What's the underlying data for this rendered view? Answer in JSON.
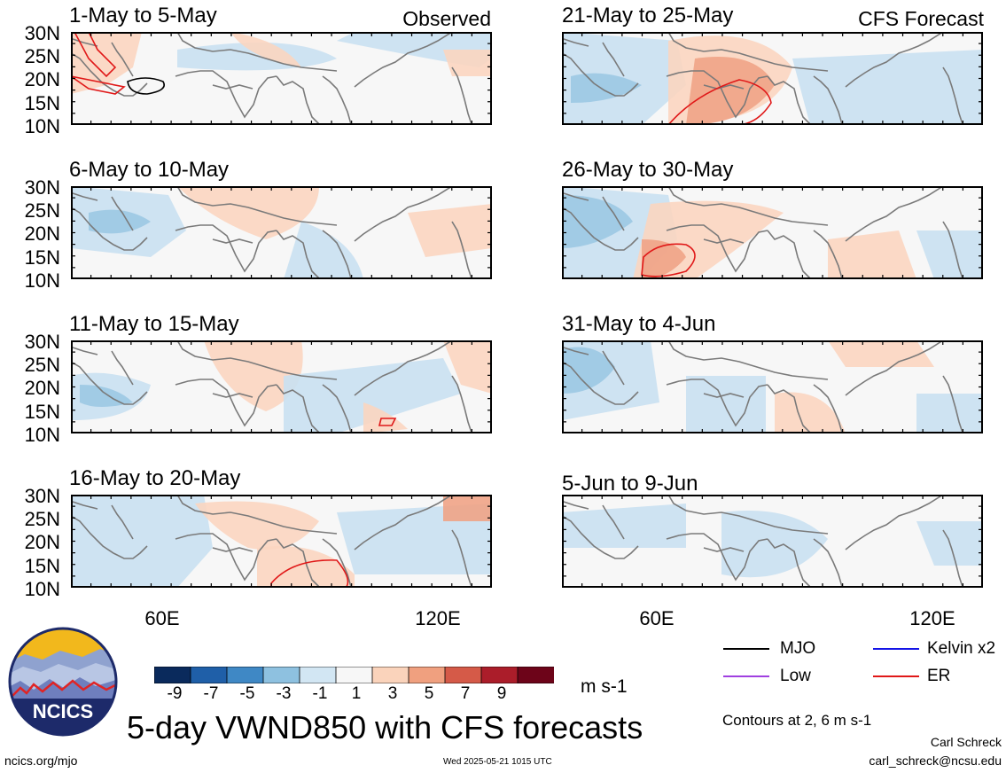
{
  "panels_left_title_tag": "Observed",
  "panels_right_title_tag": "CFS Forecast",
  "panels": [
    {
      "id": "p1",
      "date_range": "1-May to 5-May"
    },
    {
      "id": "p2",
      "date_range": "6-May to 10-May"
    },
    {
      "id": "p3",
      "date_range": "11-May to 15-May"
    },
    {
      "id": "p4",
      "date_range": "16-May to 20-May"
    },
    {
      "id": "p5",
      "date_range": "21-May to 25-May"
    },
    {
      "id": "p6",
      "date_range": "26-May to 30-May"
    },
    {
      "id": "p7",
      "date_range": "31-May to 4-Jun"
    },
    {
      "id": "p8",
      "date_range": "5-Jun to 9-Jun"
    }
  ],
  "lat_labels": [
    "30N",
    "25N",
    "20N",
    "15N",
    "10N"
  ],
  "lon_labels": [
    "60E",
    "120E"
  ],
  "colorbar": {
    "ticks": [
      "-9",
      "-7",
      "-5",
      "-3",
      "-1",
      "1",
      "3",
      "5",
      "7",
      "9"
    ],
    "colors": [
      "#0a2a5c",
      "#1f5fa8",
      "#3f88c5",
      "#8ec1e0",
      "#d2e6f3",
      "#f7f7f7",
      "#fad3bb",
      "#f0a07f",
      "#d55a48",
      "#ab1d2a",
      "#6d0419"
    ],
    "units": "m s-1"
  },
  "legend": {
    "items": [
      {
        "label": "MJO",
        "color": "#000000"
      },
      {
        "label": "Kelvin x2",
        "color": "#1414e6"
      },
      {
        "label": "Low",
        "color": "#a040e0"
      },
      {
        "label": "ER",
        "color": "#e01818"
      }
    ],
    "contours_note": "Contours at 2, 6 m s-1"
  },
  "logo_text": "NCICS",
  "main_title": "5-day VWND850 with CFS forecasts",
  "footer": {
    "url": "ncics.org/mjo",
    "timestamp": "Wed 2025-05-21 1015 UTC",
    "author": "Carl Schreck",
    "email": "carl_schreck@ncsu.edu"
  }
}
